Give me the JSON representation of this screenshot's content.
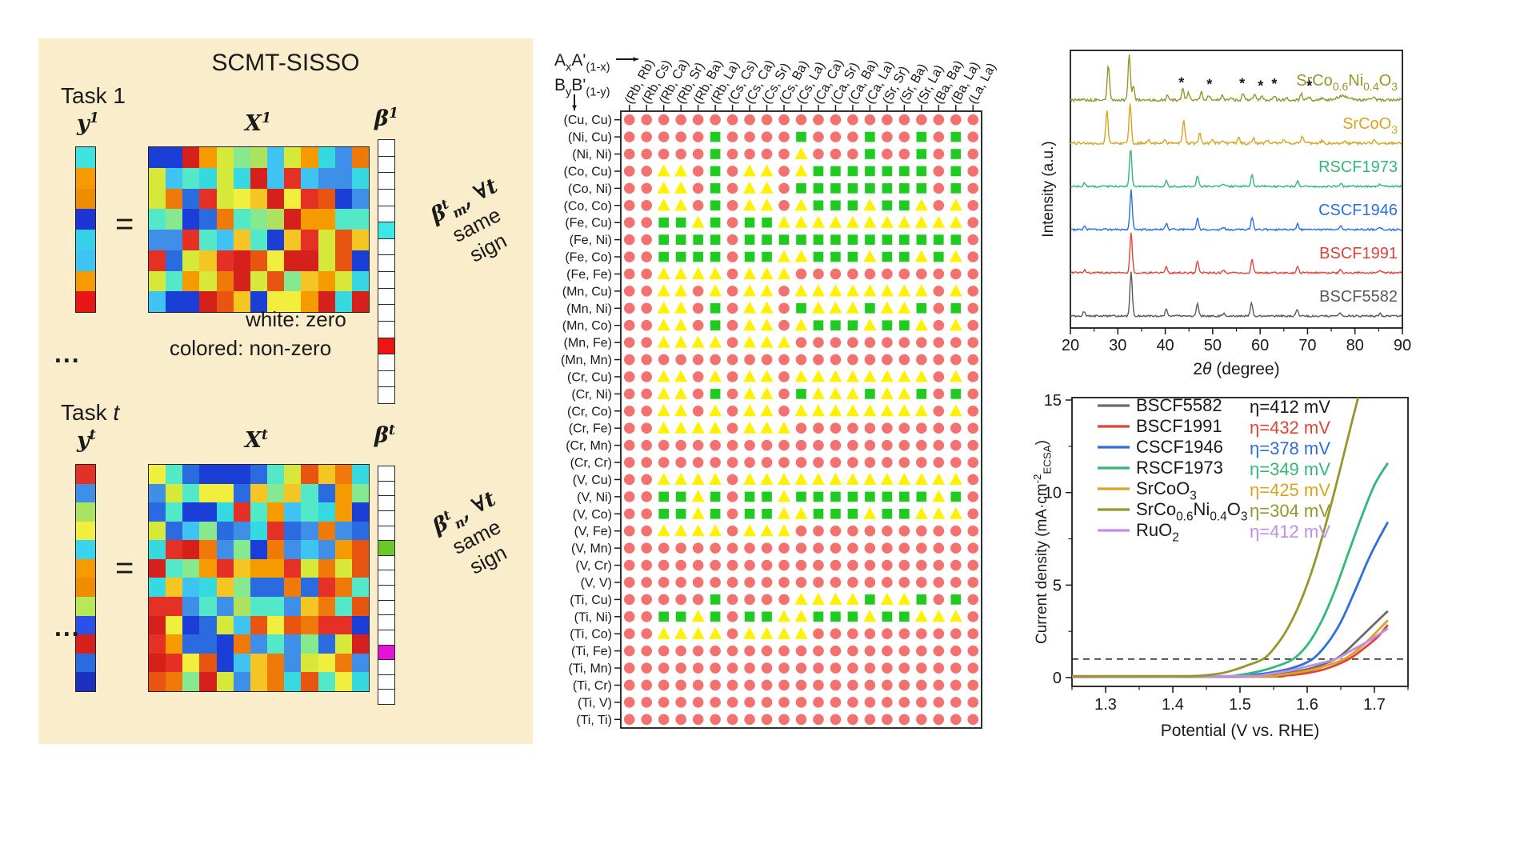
{
  "left_panel": {
    "title": "SCMT-SISSO",
    "equals_sign": "=",
    "ellipsis": "...",
    "note_white": "white: zero",
    "note_colored": "colored: non-zero",
    "task1": {
      "label": "Task 1",
      "y_label": "y^{1}",
      "x_label": "X^{1}",
      "beta_label": "β^{1}",
      "y_cells": [
        "#3fe2df",
        "#f59b00",
        "#ef8c00",
        "#1b35d6",
        "#36d0e8",
        "#3fc3f2",
        "#f59b00",
        "#e81515"
      ],
      "x_matrix": {
        "rows": 8,
        "cols": 13,
        "seed": 7
      },
      "beta_cells": {
        "count": 16,
        "special": {
          "5": "#3ee6e6",
          "12": "#ee1511"
        }
      }
    },
    "task_t": {
      "label": "Task *{t}",
      "y_label": "y^{t}",
      "x_label": "X^{t}",
      "beta_label": "β^{t}",
      "y_cells": [
        "#e43025",
        "#3f8fe8",
        "#a8e25e",
        "#f2ee3e",
        "#3bd4ee",
        "#f59b00",
        "#ef8c00",
        "#b8e858",
        "#2a52e8",
        "#d6201b",
        "#2a6be0",
        "#1b2fc0"
      ],
      "x_matrix": {
        "rows": 12,
        "cols": 13,
        "seed": 13
      },
      "beta_cells": {
        "count": 16,
        "special": {
          "5": "#6cc72b",
          "12": "#e513d8"
        }
      }
    },
    "annotation1": {
      "line1": "β^{t}_{m}, ∀*{t}",
      "line2": "same",
      "line3": "sign"
    },
    "annotation2": {
      "line1": "β^{t}_{n}, ∀*{t}",
      "line2": "same",
      "line3": "sign"
    },
    "heat_palette": [
      "#1b3fd6",
      "#2a6be0",
      "#3f8fe8",
      "#3fc3f2",
      "#36d9e0",
      "#52e8c8",
      "#86e88f",
      "#aee25e",
      "#d6e83a",
      "#f2ee3e",
      "#f5c523",
      "#f59b00",
      "#ef7a0a",
      "#e85511",
      "#e43025",
      "#d6201b"
    ]
  },
  "chart_data": [
    {
      "type": "heatmap",
      "id": "pair-grid",
      "x_axis_title_rich": "A_{x}A'_{(1-x)}",
      "y_axis_title_rich": "B_{y}B'_{(1-y)}",
      "marker_legend": {
        "R": "red circle",
        "G": "green square",
        "Y": "yellow triangle"
      },
      "marker_colors": {
        "R": "#f3716e",
        "G": "#1ecb1e",
        "Y": "#fff100"
      },
      "x_categories": [
        "(Rb, Rb)",
        "(Rb, Cs)",
        "(Rb, Ca)",
        "(Rb, Sr)",
        "(Rb, Ba)",
        "(Rb, La)",
        "(Cs, Cs)",
        "(Cs, Ca)",
        "(Cs, Sr)",
        "(Cs, Ba)",
        "(Cs, La)",
        "(Ca, Ca)",
        "(Ca, Sr)",
        "(Ca, Ba)",
        "(Ca, La)",
        "(Sr, Sr)",
        "(Sr, Ba)",
        "(Sr, La)",
        "(Ba, Ba)",
        "(Ba, La)",
        "(La, La)"
      ],
      "y_categories": [
        "(Cu, Cu)",
        "(Ni, Cu)",
        "(Ni, Ni)",
        "(Co, Cu)",
        "(Co, Ni)",
        "(Co, Co)",
        "(Fe, Cu)",
        "(Fe, Ni)",
        "(Fe, Co)",
        "(Fe, Fe)",
        "(Mn, Cu)",
        "(Mn, Ni)",
        "(Mn, Co)",
        "(Mn, Fe)",
        "(Mn, Mn)",
        "(Cr, Cu)",
        "(Cr, Ni)",
        "(Cr, Co)",
        "(Cr, Fe)",
        "(Cr, Mn)",
        "(Cr, Cr)",
        "(V, Cu)",
        "(V, Ni)",
        "(V, Co)",
        "(V, Fe)",
        "(V, Mn)",
        "(V, Cr)",
        "(V, V)",
        "(Ti, Cu)",
        "(Ti, Ni)",
        "(Ti, Co)",
        "(Ti, Fe)",
        "(Ti, Mn)",
        "(Ti, Cr)",
        "(Ti, V)",
        "(Ti, Ti)"
      ],
      "markers": [
        "RRRRRRRRRRRRRRRRRRRRR",
        "RRRRRGRRRRGRRRGRRGRGR",
        "RRRRRGRRRRYRRRGRRGRGR",
        "RRYYRGRYYRYGGGGGGGRGR",
        "RRYYRGRYYRGGGGGGGGRGR",
        "RRYYRGRYYRYGGGYGGYRYR",
        "RRGGYGRGGYYYYYYYYYYYR",
        "RRGGGGRGGGGGGGGGGGGGR",
        "RRGGGGRGGYYGGGYGGYGYR",
        "RRYYYYRYYYRRRRRRRRRRR",
        "RRYYRYRYYRYYYYYYYYRYR",
        "RRYYRGRYYRGYYYGYYGRGR",
        "RRYYRGRYYRYGGGYGGYRYR",
        "RRYYYYRYYYRRRRRRRRRRR",
        "RRRRRRRRRRRRRRRRRRRRR",
        "RRYYRYRYYRYYYYYYYYRYR",
        "RRYYRGRYYRGYYYGYYGRGR",
        "RRYYRYRYYRYYYYYYYYRYR",
        "RRYYYYRYYYRRRRRRRRRRR",
        "RRRRRRRRRRRRRRRRRRRRR",
        "RRRRRRRRRRRRRRRRRRRRR",
        "RRYYYYRYYYYYYYYYYYYYR",
        "RRGGYGRGGYGGGGGGGGYGR",
        "RRGGYGRGGYYGGGYGGYYYR",
        "RRYYYYRYYYRRRRRRRRRRR",
        "RRRRRRRRRRRRRRRRRRRRR",
        "RRRRRRRRRRRRRRRRRRRRR",
        "RRRRRRRRRRRRRRRRRRRRR",
        "RRRRRGRRRRYYYYGYYGRGR",
        "RRGGYGRGGYYGGGYGGYYYR",
        "RRYYYYRYYYYRRRRRRRRRR",
        "RRRRRRRRRRRRRRRRRRRRR",
        "RRRRRRRRRRRRRRRRRRRRR",
        "RRRRRRRRRRRRRRRRRRRRR",
        "RRRRRRRRRRRRRRRRRRRRR",
        "RRRRRRRRRRRRRRRRRRRRR"
      ]
    },
    {
      "type": "line",
      "id": "xrd",
      "xlabel_rich": "2*{θ} (degree)",
      "ylabel": "Intensity (a.u.)",
      "xlim": [
        20,
        90
      ],
      "xticks": [
        20,
        30,
        40,
        50,
        60,
        70,
        80,
        90
      ],
      "grid": false,
      "series": [
        {
          "name_rich": "BSCF5582",
          "color": "#5a5a5a",
          "baseline": 395,
          "noise": 1.1,
          "peaks": [
            [
              22.9,
              6
            ],
            [
              32.8,
              56
            ],
            [
              40.2,
              8
            ],
            [
              46.8,
              16
            ],
            [
              52.3,
              3
            ],
            [
              58.2,
              17
            ],
            [
              67.8,
              8
            ],
            [
              76.8,
              4
            ],
            [
              85.3,
              3
            ]
          ]
        },
        {
          "name_rich": "BSCF1991",
          "color": "#e04438",
          "baseline": 341,
          "noise": 1.1,
          "peaks": [
            [
              23.0,
              4
            ],
            [
              32.8,
              50
            ],
            [
              40.2,
              8
            ],
            [
              46.8,
              15
            ],
            [
              52.3,
              3
            ],
            [
              58.3,
              17
            ],
            [
              67.9,
              8
            ],
            [
              77.0,
              4
            ],
            [
              85.3,
              3
            ]
          ]
        },
        {
          "name_rich": "CSCF1946",
          "color": "#2b6fdd",
          "baseline": 287,
          "noise": 1.1,
          "peaks": [
            [
              23.0,
              4
            ],
            [
              32.8,
              50
            ],
            [
              40.2,
              8
            ],
            [
              46.8,
              14
            ],
            [
              52.3,
              3
            ],
            [
              58.3,
              16
            ],
            [
              67.9,
              7
            ],
            [
              77.0,
              4
            ],
            [
              85.3,
              3
            ]
          ]
        },
        {
          "name_rich": "RSCF1973",
          "color": "#33b877",
          "baseline": 233,
          "noise": 1.1,
          "peaks": [
            [
              23.0,
              4
            ],
            [
              32.7,
              48
            ],
            [
              40.2,
              7
            ],
            [
              46.8,
              13
            ],
            [
              52.3,
              3
            ],
            [
              58.3,
              14
            ],
            [
              67.9,
              7
            ],
            [
              77.0,
              4
            ],
            [
              85.3,
              3
            ]
          ]
        },
        {
          "name_rich": "SrCoO_{3}",
          "color": "#d9a420",
          "baseline": 179,
          "noise": 1.6,
          "peaks": [
            [
              27.7,
              40
            ],
            [
              32.6,
              50
            ],
            [
              36.5,
              4
            ],
            [
              40.0,
              5
            ],
            [
              43.9,
              30
            ],
            [
              47.3,
              12
            ],
            [
              50.0,
              4
            ],
            [
              52.0,
              3
            ],
            [
              55.5,
              9
            ],
            [
              58.6,
              7
            ],
            [
              61.5,
              4
            ],
            [
              65.0,
              5
            ],
            [
              68.9,
              8
            ],
            [
              73.0,
              3
            ],
            [
              77.8,
              4
            ],
            [
              84.0,
              4
            ]
          ]
        },
        {
          "name_rich": "SrCo_{0.6}Ni_{0.4}O_{3}",
          "color": "#97962a",
          "baseline": 125,
          "noise": 1.6,
          "peaks": [
            [
              28.0,
              44
            ],
            [
              32.4,
              56
            ],
            [
              33.3,
              18
            ],
            [
              40.5,
              6
            ],
            [
              43.7,
              16
            ],
            [
              44.9,
              9
            ],
            [
              47.6,
              11
            ],
            [
              49.2,
              6
            ],
            [
              52.0,
              5
            ],
            [
              54.0,
              3
            ],
            [
              56.4,
              9
            ],
            [
              58.8,
              7
            ],
            [
              60.3,
              5
            ],
            [
              63.0,
              6
            ],
            [
              65.5,
              4
            ],
            [
              68.7,
              8
            ],
            [
              70.3,
              4
            ],
            [
              73.0,
              3
            ],
            [
              77.5,
              5,
              1.2
            ],
            [
              84.0,
              3
            ]
          ]
        }
      ],
      "impurity_marker": "*",
      "impurity_positions": [
        43.4,
        49.3,
        56.2,
        60.1,
        63.0,
        70.4
      ]
    },
    {
      "type": "line",
      "id": "lsv",
      "xlabel": "Potential (V vs. RHE)",
      "ylabel_rich": "Current density (mA·cm^{-2}_{ECSA})",
      "xlim": [
        1.25,
        1.75
      ],
      "ylim": [
        0,
        15
      ],
      "xticks": [
        1.3,
        1.4,
        1.5,
        1.6,
        1.7
      ],
      "yticks": [
        0,
        5,
        10,
        15
      ],
      "dashed_line_y": 1,
      "legend_position": "top-left",
      "series": [
        {
          "name_rich": "BSCF5582",
          "color": "#6b6b6b",
          "eta_label": "η=412 mV",
          "eta_color": "#1a1a1a",
          "points": [
            [
              1.25,
              0.05
            ],
            [
              1.5,
              0.07
            ],
            [
              1.55,
              0.15
            ],
            [
              1.58,
              0.3
            ],
            [
              1.61,
              0.55
            ],
            [
              1.642,
              1.0
            ],
            [
              1.66,
              1.5
            ],
            [
              1.68,
              2.2
            ],
            [
              1.7,
              2.9
            ],
            [
              1.72,
              3.6
            ]
          ]
        },
        {
          "name_rich": "BSCF1991",
          "color": "#e04438",
          "eta_label": "η=432 mV",
          "eta_color": "#e04438",
          "points": [
            [
              1.25,
              0.03
            ],
            [
              1.53,
              0.05
            ],
            [
              1.57,
              0.12
            ],
            [
              1.6,
              0.25
            ],
            [
              1.63,
              0.5
            ],
            [
              1.662,
              1.0
            ],
            [
              1.685,
              1.6
            ],
            [
              1.705,
              2.2
            ],
            [
              1.72,
              2.85
            ]
          ]
        },
        {
          "name_rich": "CSCF1946",
          "color": "#2b6fdd",
          "eta_label": "η=378 mV",
          "eta_color": "#2b6fdd",
          "points": [
            [
              1.25,
              0.06
            ],
            [
              1.48,
              0.06
            ],
            [
              1.52,
              0.15
            ],
            [
              1.55,
              0.3
            ],
            [
              1.58,
              0.55
            ],
            [
              1.608,
              1.0
            ],
            [
              1.63,
              1.85
            ],
            [
              1.65,
              3.0
            ],
            [
              1.67,
              4.6
            ],
            [
              1.69,
              6.3
            ],
            [
              1.705,
              7.4
            ],
            [
              1.72,
              8.4
            ]
          ]
        },
        {
          "name_rich": "RSCF1973",
          "color": "#33b877",
          "eta_label": "η=349 mV",
          "eta_color": "#33b877",
          "points": [
            [
              1.25,
              0.06
            ],
            [
              1.46,
              0.06
            ],
            [
              1.5,
              0.15
            ],
            [
              1.53,
              0.35
            ],
            [
              1.555,
              0.62
            ],
            [
              1.579,
              1.0
            ],
            [
              1.6,
              1.75
            ],
            [
              1.62,
              2.95
            ],
            [
              1.64,
              4.6
            ],
            [
              1.66,
              6.6
            ],
            [
              1.68,
              8.6
            ],
            [
              1.7,
              10.4
            ],
            [
              1.72,
              11.6
            ]
          ]
        },
        {
          "name_rich": "SrCoO_{3}",
          "color": "#d9a420",
          "eta_label": "η=425 mV",
          "eta_color": "#d9a420",
          "points": [
            [
              1.25,
              0.04
            ],
            [
              1.52,
              0.06
            ],
            [
              1.56,
              0.15
            ],
            [
              1.59,
              0.3
            ],
            [
              1.62,
              0.55
            ],
            [
              1.655,
              1.0
            ],
            [
              1.68,
              1.65
            ],
            [
              1.7,
              2.35
            ],
            [
              1.72,
              3.1
            ]
          ]
        },
        {
          "name_rich": "SrCo_{0.6}Ni_{0.4}O_{3}",
          "color": "#97962a",
          "eta_label": "η=304 mV",
          "eta_color": "#97962a",
          "points": [
            [
              1.25,
              0.08
            ],
            [
              1.4,
              0.08
            ],
            [
              1.44,
              0.1
            ],
            [
              1.47,
              0.22
            ],
            [
              1.49,
              0.4
            ],
            [
              1.51,
              0.65
            ],
            [
              1.534,
              1.0
            ],
            [
              1.55,
              1.55
            ],
            [
              1.57,
              2.6
            ],
            [
              1.59,
              4.1
            ],
            [
              1.61,
              6.1
            ],
            [
              1.63,
              8.6
            ],
            [
              1.65,
              11.4
            ],
            [
              1.665,
              13.6
            ],
            [
              1.677,
              15.3
            ]
          ]
        },
        {
          "name_rich": "RuO_{2}",
          "color": "#bf8fe8",
          "eta_label": "η=412 mV",
          "eta_color": "#bf8fe8",
          "points": [
            [
              1.25,
              0.05
            ],
            [
              1.5,
              0.08
            ],
            [
              1.54,
              0.18
            ],
            [
              1.57,
              0.35
            ],
            [
              1.6,
              0.6
            ],
            [
              1.642,
              1.0
            ],
            [
              1.665,
              1.45
            ],
            [
              1.69,
              1.95
            ],
            [
              1.705,
              2.3
            ],
            [
              1.72,
              2.65
            ]
          ]
        }
      ]
    }
  ]
}
